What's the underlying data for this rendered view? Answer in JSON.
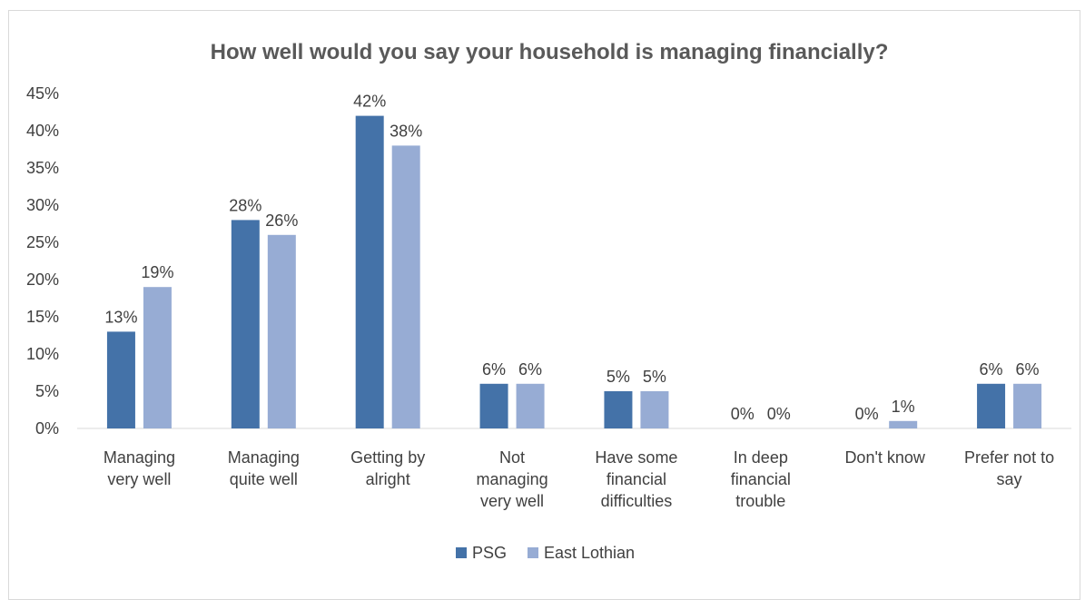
{
  "chart_data": {
    "type": "bar",
    "title": "How well would you say your household is managing financially?",
    "categories": [
      [
        "Managing",
        "very well"
      ],
      [
        "Managing",
        "quite well"
      ],
      [
        "Getting by",
        "alright"
      ],
      [
        "Not",
        "managing",
        "very well"
      ],
      [
        "Have some",
        "financial",
        "difficulties"
      ],
      [
        "In deep",
        "financial",
        "trouble"
      ],
      [
        "Don't know"
      ],
      [
        "Prefer not to",
        "say"
      ]
    ],
    "series": [
      {
        "name": "PSG",
        "color": "#4472a8",
        "values": [
          13,
          28,
          42,
          6,
          5,
          0,
          0,
          6
        ],
        "labels": [
          "13%",
          "28%",
          "42%",
          "6%",
          "5%",
          "0%",
          "0%",
          "6%"
        ]
      },
      {
        "name": "East Lothian",
        "color": "#97acd4",
        "values": [
          19,
          26,
          38,
          6,
          5,
          0,
          1,
          6
        ],
        "labels": [
          "19%",
          "26%",
          "38%",
          "6%",
          "5%",
          "0%",
          "1%",
          "6%"
        ]
      }
    ],
    "ylim": [
      0,
      45
    ],
    "yticks": [
      "0%",
      "5%",
      "10%",
      "15%",
      "20%",
      "25%",
      "30%",
      "35%",
      "40%",
      "45%"
    ],
    "ytick_values": [
      0,
      5,
      10,
      15,
      20,
      25,
      30,
      35,
      40,
      45
    ],
    "legend_position": "bottom",
    "grid": false
  }
}
